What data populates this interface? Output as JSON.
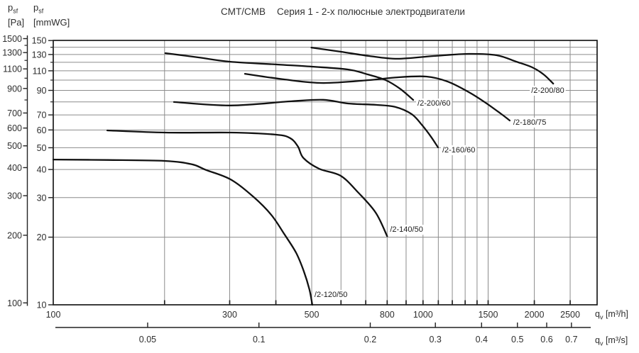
{
  "title": {
    "product": "CMT/CMB",
    "series_text": "Серия 1 - 2-х полюсные электродвигатели"
  },
  "axis_titles": {
    "pa": {
      "symbol": "p",
      "sub": "sf",
      "unit": "[Pa]"
    },
    "mmwg": {
      "symbol": "p",
      "sub": "sf",
      "unit": "[mmWG]"
    },
    "m3h": {
      "symbol": "q",
      "sub": "v",
      "unit": "[m³/h]"
    },
    "m3s": {
      "symbol": "q",
      "sub": "v",
      "unit": "[m³/s]"
    }
  },
  "colors": {
    "background": "#ffffff",
    "grid": "#8c8c8c",
    "frame": "#1a1a1a",
    "curve": "#111111",
    "text": "#2e2e2e"
  },
  "chart_data": {
    "type": "line",
    "title": "CMT/CMB Серия 1 - 2-х полюсные электродвигатели",
    "x_scale": "log",
    "y_scale": "log",
    "grid": true,
    "x_primary": {
      "label": "qv [m³/h]",
      "unit": "m³/h",
      "range": [
        100,
        2950
      ],
      "tick_labels": [
        100,
        300,
        500,
        800,
        1000,
        1500,
        2000,
        2500
      ],
      "gridlines": [
        200,
        300,
        400,
        500,
        600,
        700,
        800,
        900,
        1000,
        1100,
        1200,
        1300,
        1400,
        1500,
        2000,
        2500
      ]
    },
    "x_secondary": {
      "label": "qv [m³/s]",
      "unit": "m³/s",
      "tick_labels": [
        0.05,
        0.1,
        0.2,
        0.3,
        0.4,
        0.5,
        0.6,
        0.7
      ]
    },
    "y_primary": {
      "label": "psf [mmWG]",
      "unit": "mmWG",
      "range": [
        10,
        152
      ],
      "tick_labels": [
        150,
        130,
        110,
        90,
        70,
        60,
        50,
        40,
        30,
        20,
        10
      ],
      "minor_gridlines": [
        140,
        120,
        100,
        80
      ],
      "major_gridlines": [
        130,
        110,
        90,
        70,
        60,
        50,
        40,
        30,
        20
      ]
    },
    "y_secondary": {
      "label": "psf [Pa]",
      "unit": "Pa",
      "tick_labels": [
        1500,
        1300,
        1100,
        900,
        700,
        600,
        500,
        400,
        300,
        200,
        100
      ],
      "minor_ticks": [
        1400,
        1200,
        1000,
        800
      ]
    },
    "series": [
      {
        "name": "/2-120/50",
        "label_offset": [
          3,
          -11
        ],
        "points": [
          [
            100,
            44.3
          ],
          [
            140,
            44.1
          ],
          [
            200,
            43.7
          ],
          [
            237,
            42.2
          ],
          [
            259,
            39.8
          ],
          [
            302,
            36.1
          ],
          [
            348,
            30.2
          ],
          [
            389,
            25.1
          ],
          [
            421,
            20.7
          ],
          [
            454,
            17.0
          ],
          [
            476,
            14.1
          ],
          [
            493,
            11.7
          ],
          [
            502,
            10.0
          ]
        ]
      },
      {
        "name": "/2-140/50",
        "label_offset": [
          4,
          -6
        ],
        "points": [
          [
            140,
            59.7
          ],
          [
            201,
            58.4
          ],
          [
            302,
            58.4
          ],
          [
            399,
            57.2
          ],
          [
            437,
            55.2
          ],
          [
            459,
            50.6
          ],
          [
            475,
            45.0
          ],
          [
            524,
            40.3
          ],
          [
            599,
            37.5
          ],
          [
            669,
            31.5
          ],
          [
            745,
            25.7
          ],
          [
            800,
            20.2
          ]
        ]
      },
      {
        "name": "/2-160/60",
        "label_offset": [
          6,
          7
        ],
        "points": [
          [
            212,
            79.9
          ],
          [
            302,
            77.1
          ],
          [
            440,
            80.5
          ],
          [
            537,
            81.7
          ],
          [
            626,
            78.7
          ],
          [
            745,
            77.6
          ],
          [
            840,
            76.0
          ],
          [
            932,
            70.5
          ],
          [
            995,
            62.9
          ],
          [
            1052,
            55.8
          ],
          [
            1098,
            50.2
          ]
        ]
      },
      {
        "name": "/2-180/75",
        "label_offset": [
          5,
          6
        ],
        "points": [
          [
            330,
            106.7
          ],
          [
            421,
            100.7
          ],
          [
            537,
            97.1
          ],
          [
            715,
            100.0
          ],
          [
            853,
            102.9
          ],
          [
            1021,
            103.7
          ],
          [
            1164,
            98.6
          ],
          [
            1330,
            88.4
          ],
          [
            1476,
            79.3
          ],
          [
            1620,
            71.1
          ],
          [
            1716,
            66.1
          ]
        ]
      },
      {
        "name": "/2-200/60",
        "label_offset": [
          6,
          8
        ],
        "points": [
          [
            201,
            131.8
          ],
          [
            247,
            126.2
          ],
          [
            300,
            120.8
          ],
          [
            403,
            117.3
          ],
          [
            500,
            114.8
          ],
          [
            626,
            111.5
          ],
          [
            709,
            106.0
          ],
          [
            792,
            100.0
          ],
          [
            866,
            91.6
          ],
          [
            941,
            81.6
          ]
        ]
      },
      {
        "name": "/2-200/80",
        "label_offset": [
          -31,
          13
        ],
        "points": [
          [
            499,
            139.6
          ],
          [
            600,
            133.7
          ],
          [
            715,
            128.0
          ],
          [
            853,
            124.4
          ],
          [
            1068,
            128.0
          ],
          [
            1330,
            130.8
          ],
          [
            1583,
            128.9
          ],
          [
            1787,
            120.8
          ],
          [
            1974,
            114.0
          ],
          [
            2119,
            106.0
          ],
          [
            2250,
            96.4
          ]
        ]
      }
    ]
  }
}
